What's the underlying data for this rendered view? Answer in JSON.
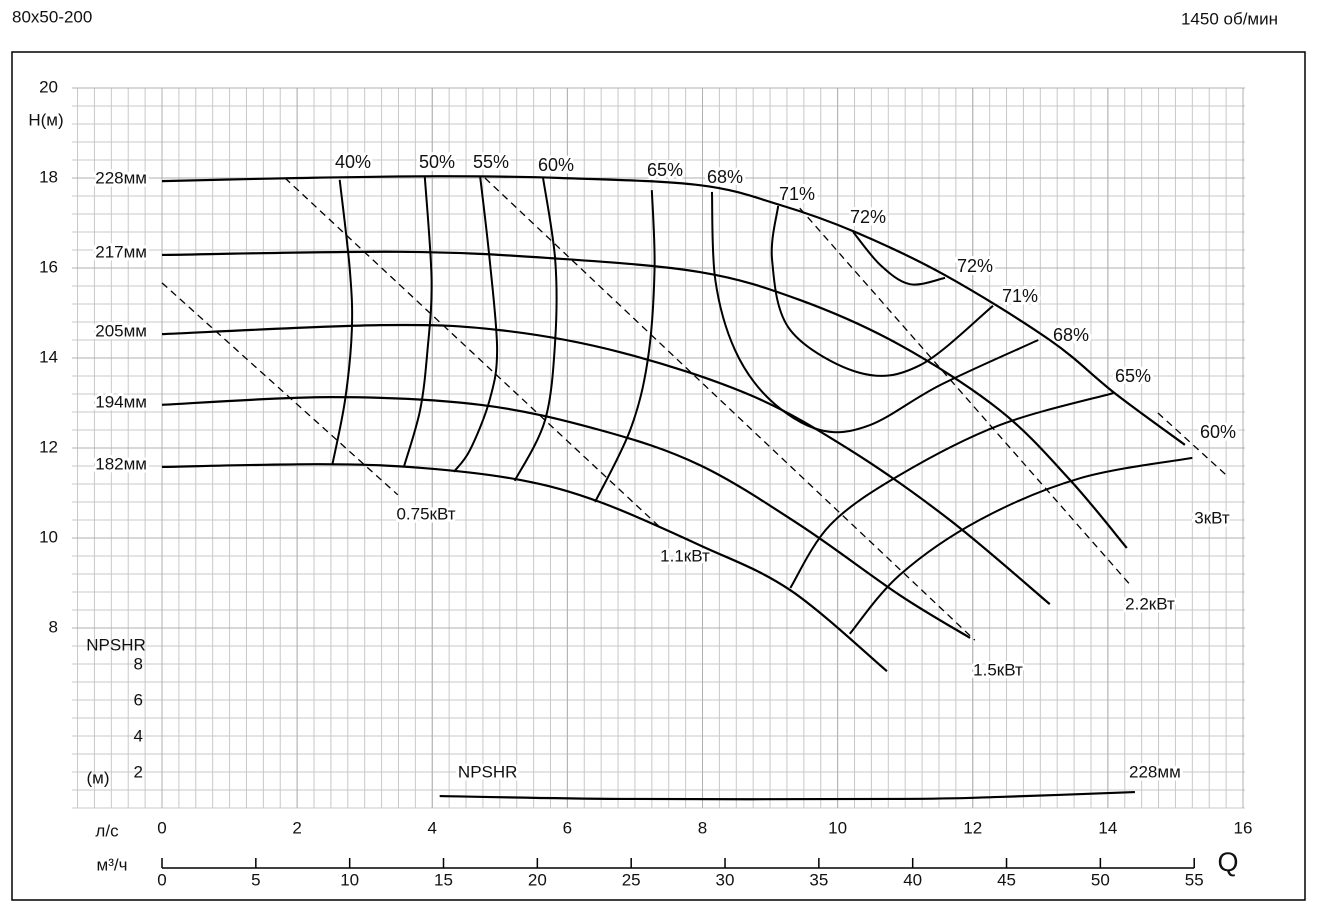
{
  "chart_data": {
    "type": "pump-curve",
    "title": "80x50-200",
    "subtitle": "1450 об/мин",
    "y_label": "H(м)",
    "x_label": "Q",
    "x_unit": "л/с",
    "x2_unit": "м³/ч",
    "xlim": [
      0,
      16
    ],
    "xticks": [
      0,
      2,
      4,
      6,
      8,
      10,
      12,
      14,
      16
    ],
    "x2lim": [
      0,
      57.6
    ],
    "x2ticks": [
      0,
      5,
      10,
      15,
      20,
      25,
      30,
      35,
      40,
      45,
      50,
      55
    ],
    "ylim": [
      4,
      20
    ],
    "yticks": [
      8,
      10,
      12,
      14,
      16,
      18,
      20
    ],
    "npsh_label": "NPSHR",
    "npsh_unit": "(м)",
    "npsh_ylim": [
      0,
      8
    ],
    "npsh_yticks": [
      2,
      4,
      6,
      8
    ],
    "grid": true,
    "color": "#000000",
    "series": [
      {
        "name": "228мм",
        "x": [
          0,
          2.04,
          4.1,
          5.9,
          7.96,
          9.15,
          10.26,
          11.59,
          13.14,
          14.1,
          15.14
        ],
        "values": [
          17.93,
          18.0,
          18.04,
          18.0,
          17.84,
          17.4,
          16.8,
          15.84,
          14.4,
          13.22,
          12.07
        ]
      },
      {
        "name": "217мм",
        "x": [
          0,
          3.52,
          5.74,
          7.96,
          9.44,
          10.92,
          12.4,
          13.44,
          14.28
        ],
        "values": [
          16.29,
          16.36,
          16.22,
          15.91,
          15.29,
          14.29,
          12.84,
          11.29,
          9.78
        ]
      },
      {
        "name": "205мм",
        "x": [
          0,
          3.23,
          5.0,
          6.78,
          8.7,
          10.18,
          11.66,
          13.14
        ],
        "values": [
          14.53,
          14.73,
          14.62,
          14.13,
          13.18,
          11.96,
          10.4,
          8.53
        ]
      },
      {
        "name": "194мм",
        "x": [
          0,
          2.49,
          4.71,
          6.48,
          7.96,
          9.44,
          10.92,
          11.96
        ],
        "values": [
          12.96,
          13.13,
          12.96,
          12.4,
          11.62,
          10.29,
          8.73,
          7.78
        ]
      },
      {
        "name": "182мм",
        "x": [
          0,
          2.34,
          3.82,
          5.3,
          6.48,
          7.96,
          9.3,
          10.73
        ],
        "values": [
          11.58,
          11.64,
          11.56,
          11.29,
          10.8,
          9.84,
          8.84,
          7.04
        ]
      }
    ],
    "efficiency": [
      {
        "x": [
          2.63,
          2.78,
          2.81,
          2.71,
          2.52
        ],
        "values": [
          17.96,
          15.96,
          14.62,
          13.07,
          11.62
        ]
      },
      {
        "x": [
          3.89,
          3.99,
          3.93,
          3.82,
          3.58
        ],
        "values": [
          18.02,
          15.73,
          14.18,
          12.84,
          11.58
        ]
      },
      {
        "x": [
          4.71,
          4.85,
          4.96,
          4.85,
          4.56,
          4.32
        ],
        "values": [
          18.02,
          16.18,
          14.18,
          13.07,
          11.96,
          11.47
        ]
      },
      {
        "x": [
          5.64,
          5.82,
          5.82,
          5.67,
          5.22
        ],
        "values": [
          18.0,
          16.18,
          14.4,
          12.62,
          11.27
        ]
      },
      {
        "x": [
          7.25,
          7.29,
          7.19,
          6.93,
          6.41
        ],
        "values": [
          17.73,
          15.96,
          13.96,
          12.4,
          10.8
        ]
      },
      {
        "x": [
          8.14,
          8.19,
          8.48,
          9.0,
          9.74,
          10.48,
          11.52,
          12.97
        ],
        "values": [
          17.69,
          15.73,
          14.18,
          13.07,
          12.4,
          12.51,
          13.4,
          14.4
        ]
      },
      {
        "x": [
          9.12,
          9.03,
          9.3,
          10.33,
          11.22,
          12.3
        ],
        "values": [
          17.38,
          16.18,
          14.62,
          13.67,
          13.84,
          15.16
        ]
      },
      {
        "x": [
          10.23,
          10.63,
          11.07,
          11.59
        ],
        "values": [
          16.8,
          16.07,
          15.64,
          15.78
        ]
      },
      {
        "x": [
          9.3,
          9.89,
          10.92,
          12.4,
          14.08
        ],
        "values": [
          8.89,
          10.29,
          11.4,
          12.51,
          13.22
        ]
      },
      {
        "x": [
          10.18,
          10.92,
          12.1,
          13.59,
          15.25
        ],
        "values": [
          7.87,
          9.18,
          10.4,
          11.33,
          11.78
        ]
      }
    ],
    "efficiency_labels": [
      "40%",
      "50%",
      "55%",
      "60%",
      "65%",
      "68%",
      "71%",
      "72%",
      "72%",
      "71%",
      "68%",
      "65%",
      "60%"
    ],
    "power": [
      {
        "name": "0.75кВт",
        "x": [
          0,
          3.49
        ],
        "values": [
          15.67,
          10.96
        ]
      },
      {
        "name": "1.1кВт",
        "x": [
          1.82,
          7.37
        ],
        "values": [
          18.0,
          10.24
        ]
      },
      {
        "name": "1.5кВт",
        "x": [
          4.78,
          12.03
        ],
        "values": [
          18.0,
          7.73
        ]
      },
      {
        "name": "2.2кВт",
        "x": [
          9.44,
          14.33
        ],
        "values": [
          17.33,
          8.96
        ]
      },
      {
        "name": "3кВт",
        "x": [
          14.74,
          15.78
        ],
        "values": [
          12.78,
          11.36
        ]
      }
    ],
    "npshr": {
      "name": "NPSHR",
      "label": "228мм",
      "x": [
        4.11,
        6.78,
        10.92,
        12.4,
        14.4
      ],
      "values": [
        0.72,
        0.56,
        0.56,
        0.67,
        0.94
      ]
    }
  }
}
